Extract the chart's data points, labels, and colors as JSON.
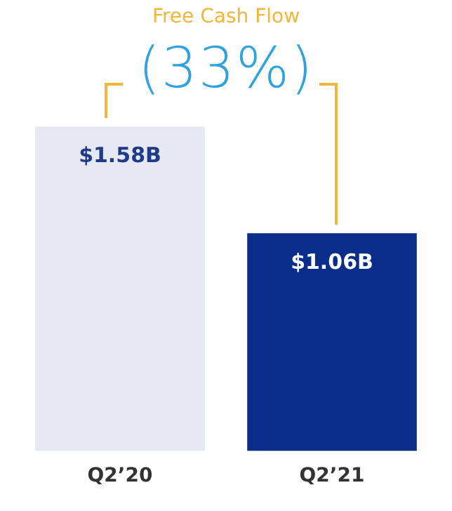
{
  "chart_data": {
    "type": "bar",
    "categories": [
      "Q2’20",
      "Q2’21"
    ],
    "values": [
      1.58,
      1.06
    ],
    "colors": [
      "#e6e9f4",
      "#0b2d8a"
    ],
    "value_labels": [
      "$1.58B",
      "$1.06B"
    ],
    "annotations": [
      "Free Cash Flow",
      "(33%)"
    ],
    "grid": false,
    "legend": false,
    "tick_labels": "x"
  }
}
